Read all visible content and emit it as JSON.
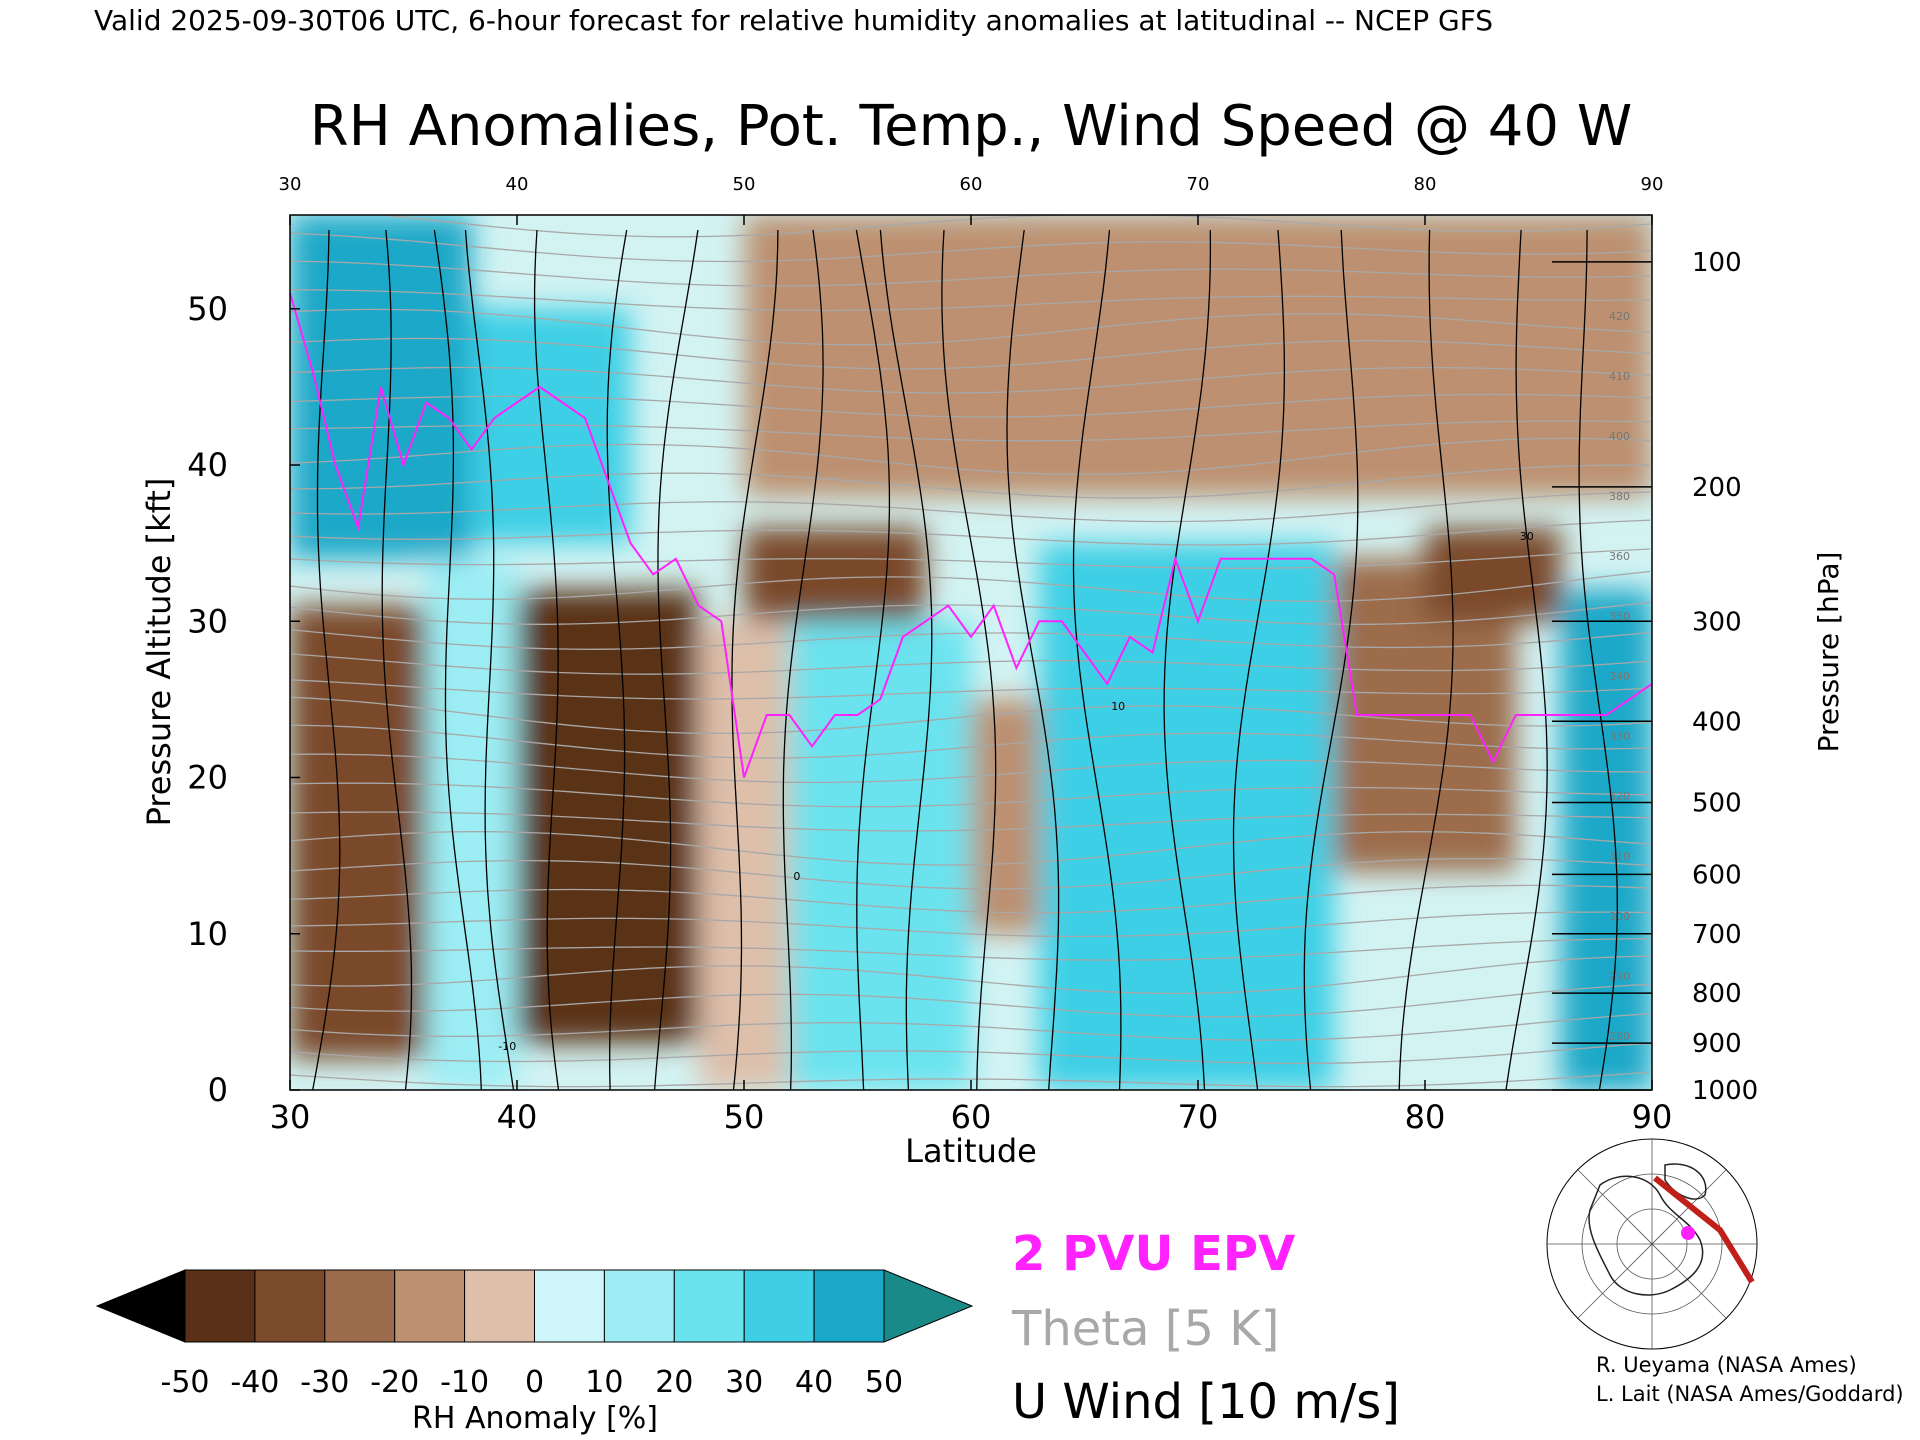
{
  "header": {
    "valid_line": "Valid 2025-09-30T06 UTC, 6-hour forecast for relative humidity anomalies at latitudinal -- NCEP GFS",
    "title": "RH Anomalies, Pot. Temp., Wind Speed @ 40 W"
  },
  "colors": {
    "epv": "#ff22ff",
    "theta": "#a8a8a8",
    "wind": "#000000",
    "dry_max": "#000000",
    "moist_max": "#1a8a88"
  },
  "chart_data": {
    "type": "heatmap",
    "title": "RH Anomalies, Pot. Temp., Wind Speed @ 40 W",
    "xlabel": "Latitude",
    "ylabel": "Pressure Altitude [kft]",
    "y2label": "Pressure [hPa]",
    "xlim": [
      30,
      90
    ],
    "ylim": [
      0,
      56
    ],
    "x_ticks": [
      "30",
      "40",
      "50",
      "60",
      "70",
      "80",
      "90"
    ],
    "y_ticks": [
      "0",
      "10",
      "20",
      "30",
      "40",
      "50"
    ],
    "pressure_ticks": [
      {
        "label": "1000",
        "kft": 0
      },
      {
        "label": "900",
        "kft": 3
      },
      {
        "label": "800",
        "kft": 6.2
      },
      {
        "label": "700",
        "kft": 10
      },
      {
        "label": "600",
        "kft": 13.8
      },
      {
        "label": "500",
        "kft": 18.4
      },
      {
        "label": "400",
        "kft": 23.6
      },
      {
        "label": "300",
        "kft": 30
      },
      {
        "label": "200",
        "kft": 38.6
      },
      {
        "label": "100",
        "kft": 53
      }
    ],
    "colorbar": {
      "label": "RH Anomaly [%]",
      "ticks": [
        "-50",
        "-40",
        "-30",
        "-20",
        "-10",
        "0",
        "10",
        "20",
        "30",
        "40",
        "50"
      ],
      "colors": [
        "#3a1d0c",
        "#5a3018",
        "#7a4a2a",
        "#9c6c4c",
        "#bc9070",
        "#ddbfaa",
        "#cff6f8",
        "#9ceef4",
        "#6be3ef",
        "#3ecfe5",
        "#1aa8c8",
        "#0a7fa0"
      ]
    },
    "legend": {
      "epv": "2 PVU EPV",
      "theta": "Theta [5 K]",
      "wind": "U Wind [10 m/s]"
    },
    "rh_field_bands": [
      {
        "lat_range": [
          30,
          36
        ],
        "kft_range": [
          2,
          31
        ],
        "anomaly": -40
      },
      {
        "lat_range": [
          30,
          38
        ],
        "kft_range": [
          34,
          56
        ],
        "anomaly": 40
      },
      {
        "lat_range": [
          36,
          40
        ],
        "kft_range": [
          0,
          34
        ],
        "anomaly": 10
      },
      {
        "lat_range": [
          40,
          48
        ],
        "kft_range": [
          3,
          32
        ],
        "anomaly": -45
      },
      {
        "lat_range": [
          38,
          45
        ],
        "kft_range": [
          35,
          50
        ],
        "anomaly": 35
      },
      {
        "lat_range": [
          48,
          52
        ],
        "kft_range": [
          0,
          30
        ],
        "anomaly": -10
      },
      {
        "lat_range": [
          52,
          60
        ],
        "kft_range": [
          0,
          30
        ],
        "anomaly": 25
      },
      {
        "lat_range": [
          60,
          63
        ],
        "kft_range": [
          10,
          25
        ],
        "anomaly": -20
      },
      {
        "lat_range": [
          63,
          76
        ],
        "kft_range": [
          0,
          35
        ],
        "anomaly": 35
      },
      {
        "lat_range": [
          76,
          84
        ],
        "kft_range": [
          14,
          34
        ],
        "anomaly": -25
      },
      {
        "lat_range": [
          86,
          90
        ],
        "kft_range": [
          0,
          32
        ],
        "anomaly": 40
      },
      {
        "lat_range": [
          50,
          90
        ],
        "kft_range": [
          38,
          56
        ],
        "anomaly": -15
      },
      {
        "lat_range": [
          50,
          58
        ],
        "kft_range": [
          30,
          36
        ],
        "anomaly": -40
      },
      {
        "lat_range": [
          80,
          86
        ],
        "kft_range": [
          30,
          36
        ],
        "anomaly": -35
      }
    ],
    "epv_2pvu": {
      "lat": [
        30,
        31,
        32,
        33,
        34,
        35,
        36,
        37,
        38,
        39,
        40,
        41,
        42,
        43,
        44,
        45,
        46,
        47,
        48,
        49,
        50,
        51,
        52,
        53,
        54,
        55,
        56,
        57,
        58,
        59,
        60,
        61,
        62,
        63,
        64,
        65,
        66,
        67,
        68,
        69,
        70,
        71,
        72,
        73,
        74,
        75,
        76,
        77,
        78,
        79,
        80,
        81,
        82,
        83,
        84,
        85,
        86,
        87,
        88,
        89,
        90
      ],
      "kft": [
        51,
        46,
        40,
        36,
        45,
        40,
        44,
        43,
        41,
        43,
        44,
        45,
        44,
        43,
        39,
        35,
        33,
        34,
        31,
        30,
        20,
        24,
        24,
        22,
        24,
        24,
        25,
        29,
        30,
        31,
        29,
        31,
        27,
        30,
        30,
        28,
        26,
        29,
        28,
        34,
        30,
        34,
        34,
        34,
        34,
        34,
        33,
        24,
        24,
        24,
        24,
        24,
        24,
        21,
        24,
        24,
        24,
        24,
        24,
        25,
        26
      ]
    },
    "theta_labels": [
      "280",
      "290",
      "300",
      "310",
      "320",
      "330",
      "340",
      "350",
      "360",
      "380",
      "400",
      "410",
      "420"
    ],
    "wind_labels": [
      "-10",
      "0",
      "10",
      "30"
    ]
  },
  "credits": {
    "line1": "R. Ueyama (NASA Ames)",
    "line2": "L. Lait (NASA Ames/Goddard)"
  }
}
